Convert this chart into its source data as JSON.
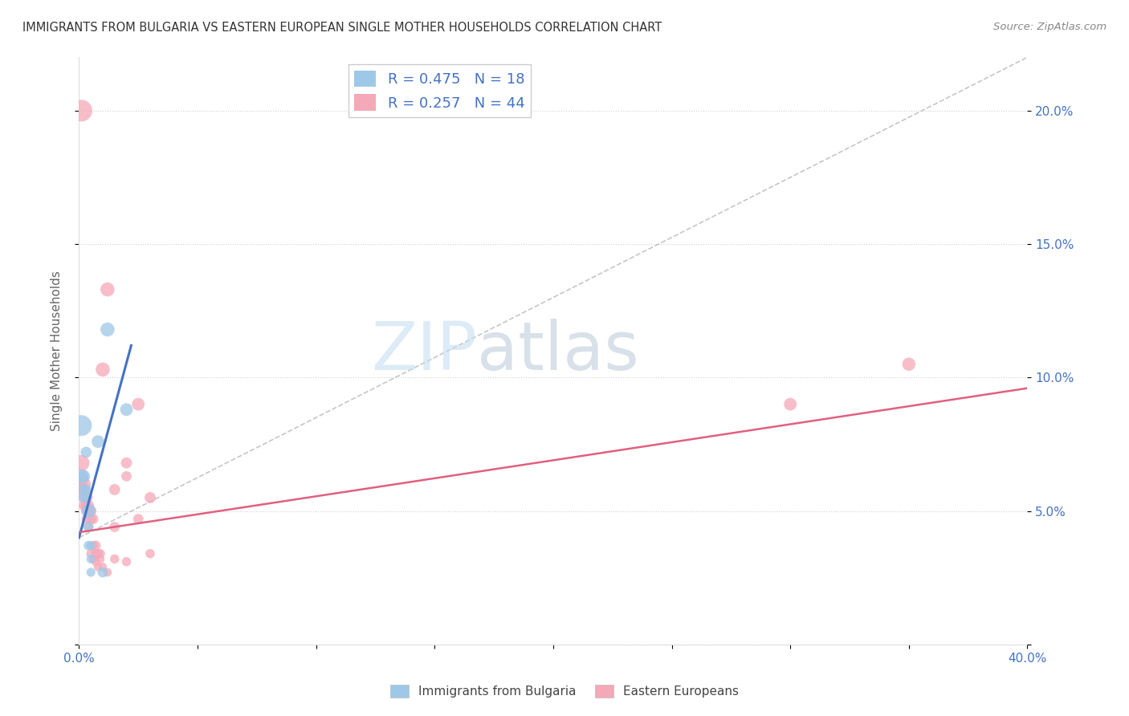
{
  "title": "IMMIGRANTS FROM BULGARIA VS EASTERN EUROPEAN SINGLE MOTHER HOUSEHOLDS CORRELATION CHART",
  "source": "Source: ZipAtlas.com",
  "ylabel": "Single Mother Households",
  "xlim": [
    0.0,
    0.4
  ],
  "ylim": [
    0.0,
    0.22
  ],
  "background_color": "#ffffff",
  "bulgaria_color": "#9ec8e8",
  "eastern_color": "#f5a8b8",
  "bulgaria_line_color": "#4472c4",
  "eastern_line_color": "#e06080",
  "dashed_line_color": "#b8b8b8",
  "axis_label_color": "#4472c4",
  "title_color": "#333333",
  "source_color": "#888888",
  "legend_1_r": "0.475",
  "legend_1_n": "18",
  "legend_2_r": "0.257",
  "legend_2_n": "44",
  "bottom_label_1": "Immigrants from Bulgaria",
  "bottom_label_2": "Eastern Europeans",
  "bulgaria_points": [
    [
      0.001,
      0.082
    ],
    [
      0.001,
      0.063
    ],
    [
      0.002,
      0.063
    ],
    [
      0.002,
      0.058
    ],
    [
      0.002,
      0.055
    ],
    [
      0.003,
      0.072
    ],
    [
      0.003,
      0.058
    ],
    [
      0.003,
      0.055
    ],
    [
      0.004,
      0.05
    ],
    [
      0.004,
      0.044
    ],
    [
      0.004,
      0.037
    ],
    [
      0.005,
      0.037
    ],
    [
      0.005,
      0.032
    ],
    [
      0.005,
      0.027
    ],
    [
      0.008,
      0.076
    ],
    [
      0.01,
      0.027
    ],
    [
      0.012,
      0.118
    ],
    [
      0.02,
      0.088
    ]
  ],
  "bulgaria_sizes": [
    350,
    160,
    130,
    100,
    85,
    100,
    85,
    75,
    160,
    85,
    75,
    65,
    65,
    65,
    130,
    85,
    160,
    130
  ],
  "eastern_points": [
    [
      0.001,
      0.2
    ],
    [
      0.001,
      0.068
    ],
    [
      0.001,
      0.062
    ],
    [
      0.001,
      0.058
    ],
    [
      0.002,
      0.06
    ],
    [
      0.002,
      0.058
    ],
    [
      0.002,
      0.055
    ],
    [
      0.002,
      0.052
    ],
    [
      0.003,
      0.055
    ],
    [
      0.003,
      0.052
    ],
    [
      0.003,
      0.05
    ],
    [
      0.003,
      0.047
    ],
    [
      0.004,
      0.052
    ],
    [
      0.004,
      0.05
    ],
    [
      0.004,
      0.044
    ],
    [
      0.005,
      0.05
    ],
    [
      0.005,
      0.047
    ],
    [
      0.005,
      0.034
    ],
    [
      0.006,
      0.047
    ],
    [
      0.006,
      0.037
    ],
    [
      0.006,
      0.032
    ],
    [
      0.007,
      0.037
    ],
    [
      0.007,
      0.034
    ],
    [
      0.007,
      0.031
    ],
    [
      0.008,
      0.034
    ],
    [
      0.008,
      0.029
    ],
    [
      0.009,
      0.034
    ],
    [
      0.009,
      0.032
    ],
    [
      0.01,
      0.103
    ],
    [
      0.01,
      0.029
    ],
    [
      0.012,
      0.133
    ],
    [
      0.012,
      0.027
    ],
    [
      0.015,
      0.058
    ],
    [
      0.015,
      0.044
    ],
    [
      0.015,
      0.032
    ],
    [
      0.02,
      0.068
    ],
    [
      0.02,
      0.063
    ],
    [
      0.02,
      0.031
    ],
    [
      0.025,
      0.09
    ],
    [
      0.025,
      0.047
    ],
    [
      0.03,
      0.055
    ],
    [
      0.03,
      0.034
    ],
    [
      0.3,
      0.09
    ],
    [
      0.35,
      0.105
    ]
  ],
  "eastern_sizes": [
    380,
    210,
    160,
    130,
    160,
    130,
    100,
    85,
    130,
    100,
    85,
    70,
    100,
    85,
    70,
    100,
    85,
    70,
    85,
    70,
    60,
    85,
    70,
    60,
    70,
    60,
    70,
    60,
    160,
    60,
    160,
    60,
    100,
    85,
    70,
    100,
    85,
    70,
    130,
    85,
    100,
    70,
    130,
    140
  ],
  "bulgaria_trend_x": [
    0.0,
    0.022
  ],
  "bulgaria_trend_y": [
    0.04,
    0.112
  ],
  "eastern_trend_x": [
    0.0,
    0.4
  ],
  "eastern_trend_y": [
    0.042,
    0.096
  ],
  "dashed_trend_x": [
    0.0,
    0.4
  ],
  "dashed_trend_y": [
    0.04,
    0.22
  ],
  "xtick_positions": [
    0.0,
    0.05,
    0.1,
    0.15,
    0.2,
    0.25,
    0.3,
    0.35,
    0.4
  ],
  "xtick_labels": [
    "0.0%",
    "",
    "",
    "",
    "",
    "",
    "",
    "",
    "40.0%"
  ],
  "ytick_positions": [
    0.0,
    0.05,
    0.1,
    0.15,
    0.2
  ],
  "ytick_labels_right": [
    "",
    "5.0%",
    "10.0%",
    "15.0%",
    "20.0%"
  ]
}
